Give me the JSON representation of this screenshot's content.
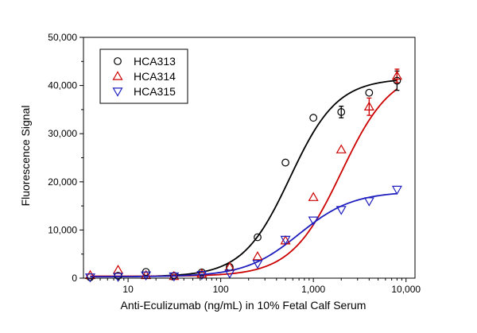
{
  "chart_data": {
    "type": "scatter",
    "x_scale": "log",
    "xlabel": "Anti-Eculizumab (ng/mL) in 10% Fetal Calf Serum",
    "ylabel": "Fluorescence Signal",
    "xlim": [
      3.3,
      12500
    ],
    "ylim": [
      0,
      50000
    ],
    "x_ticks": [
      10,
      100,
      1000,
      10000
    ],
    "x_tick_labels": [
      "10",
      "100",
      "1,000",
      "10,000"
    ],
    "y_ticks": [
      0,
      10000,
      20000,
      30000,
      40000,
      50000
    ],
    "y_tick_labels": [
      "0",
      "10,000",
      "20,000",
      "30,000",
      "40,000",
      "50,000"
    ],
    "grid": false,
    "legend": "top-left",
    "series": [
      {
        "name": "HCA313",
        "marker": "circle",
        "color": "#000000",
        "x": [
          3.9,
          7.8,
          15.6,
          31.3,
          62.5,
          125,
          250,
          500,
          1000,
          2000,
          4000,
          8000
        ],
        "y": [
          200,
          500,
          1300,
          500,
          1200,
          2300,
          8500,
          24000,
          33300,
          34500,
          38500,
          41000
        ],
        "error": [
          0,
          0,
          0,
          0,
          0,
          0,
          0,
          0,
          0,
          1200,
          0,
          2000
        ],
        "fit": {
          "bottom": 300,
          "top": 41500,
          "ec50": 560,
          "hill": 1.7
        }
      },
      {
        "name": "HCA314",
        "marker": "triangle-up",
        "color": "#cc0000",
        "x": [
          3.9,
          7.8,
          15.6,
          31.3,
          62.5,
          125,
          250,
          500,
          1000,
          2000,
          4000,
          8000
        ],
        "y": [
          600,
          1700,
          600,
          400,
          900,
          2300,
          4500,
          7800,
          16800,
          26700,
          35600,
          42000
        ],
        "error": [
          0,
          0,
          0,
          0,
          0,
          0,
          0,
          0,
          0,
          0,
          1800,
          1400
        ],
        "fit": {
          "bottom": 400,
          "top": 43500,
          "ec50": 2000,
          "hill": 1.6
        }
      },
      {
        "name": "HCA315",
        "marker": "triangle-down",
        "color": "#1f1fbf",
        "x": [
          3.9,
          7.8,
          15.6,
          31.3,
          62.5,
          125,
          250,
          500,
          1000,
          2000,
          4000,
          8000
        ],
        "y": [
          200,
          300,
          600,
          400,
          700,
          1000,
          3000,
          8000,
          12000,
          14200,
          16000,
          18400
        ],
        "error": [
          0,
          0,
          0,
          0,
          0,
          0,
          0,
          0,
          0,
          0,
          0,
          0
        ],
        "fit": {
          "bottom": 300,
          "top": 18000,
          "ec50": 700,
          "hill": 1.5
        }
      }
    ]
  }
}
